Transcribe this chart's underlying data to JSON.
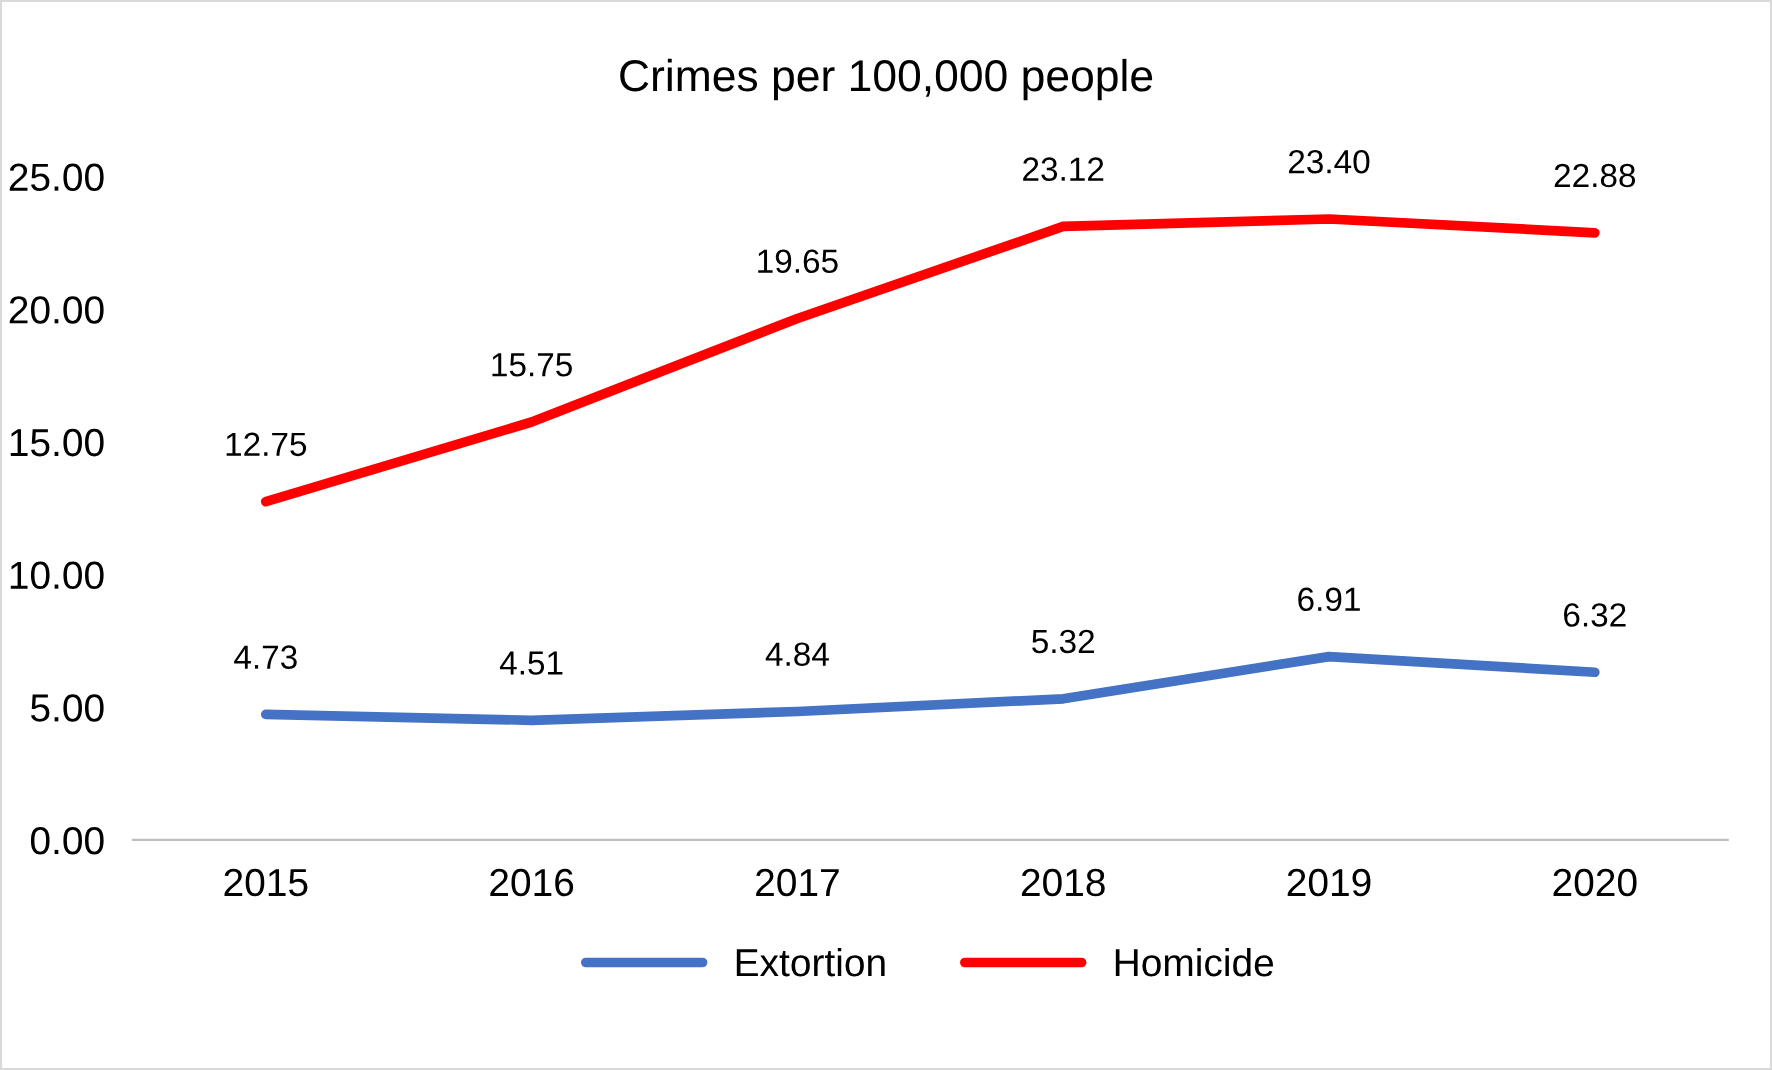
{
  "chart_data": {
    "type": "line",
    "title": "Crimes per 100,000 people",
    "categories": [
      "2015",
      "2016",
      "2017",
      "2018",
      "2019",
      "2020"
    ],
    "series": [
      {
        "name": "Extortion",
        "color": "#4472c4",
        "values": [
          4.73,
          4.51,
          4.84,
          5.32,
          6.91,
          6.32
        ],
        "value_labels": [
          "4.73",
          "4.51",
          "4.84",
          "5.32",
          "6.91",
          "6.32"
        ]
      },
      {
        "name": "Homicide",
        "color": "#ff0000",
        "values": [
          12.75,
          15.75,
          19.65,
          23.12,
          23.4,
          22.88
        ],
        "value_labels": [
          "12.75",
          "15.75",
          "19.65",
          "23.12",
          "23.40",
          "22.88"
        ]
      }
    ],
    "ylim": [
      0,
      25
    ],
    "yticks": [
      {
        "value": 0,
        "label": "0.00"
      },
      {
        "value": 5,
        "label": "5.00"
      },
      {
        "value": 10,
        "label": "10.00"
      },
      {
        "value": 15,
        "label": "15.00"
      },
      {
        "value": 20,
        "label": "20.00"
      },
      {
        "value": 25,
        "label": "25.00"
      }
    ],
    "grid": false,
    "legend": "bottom",
    "marker": "none",
    "line_style": "solid"
  }
}
